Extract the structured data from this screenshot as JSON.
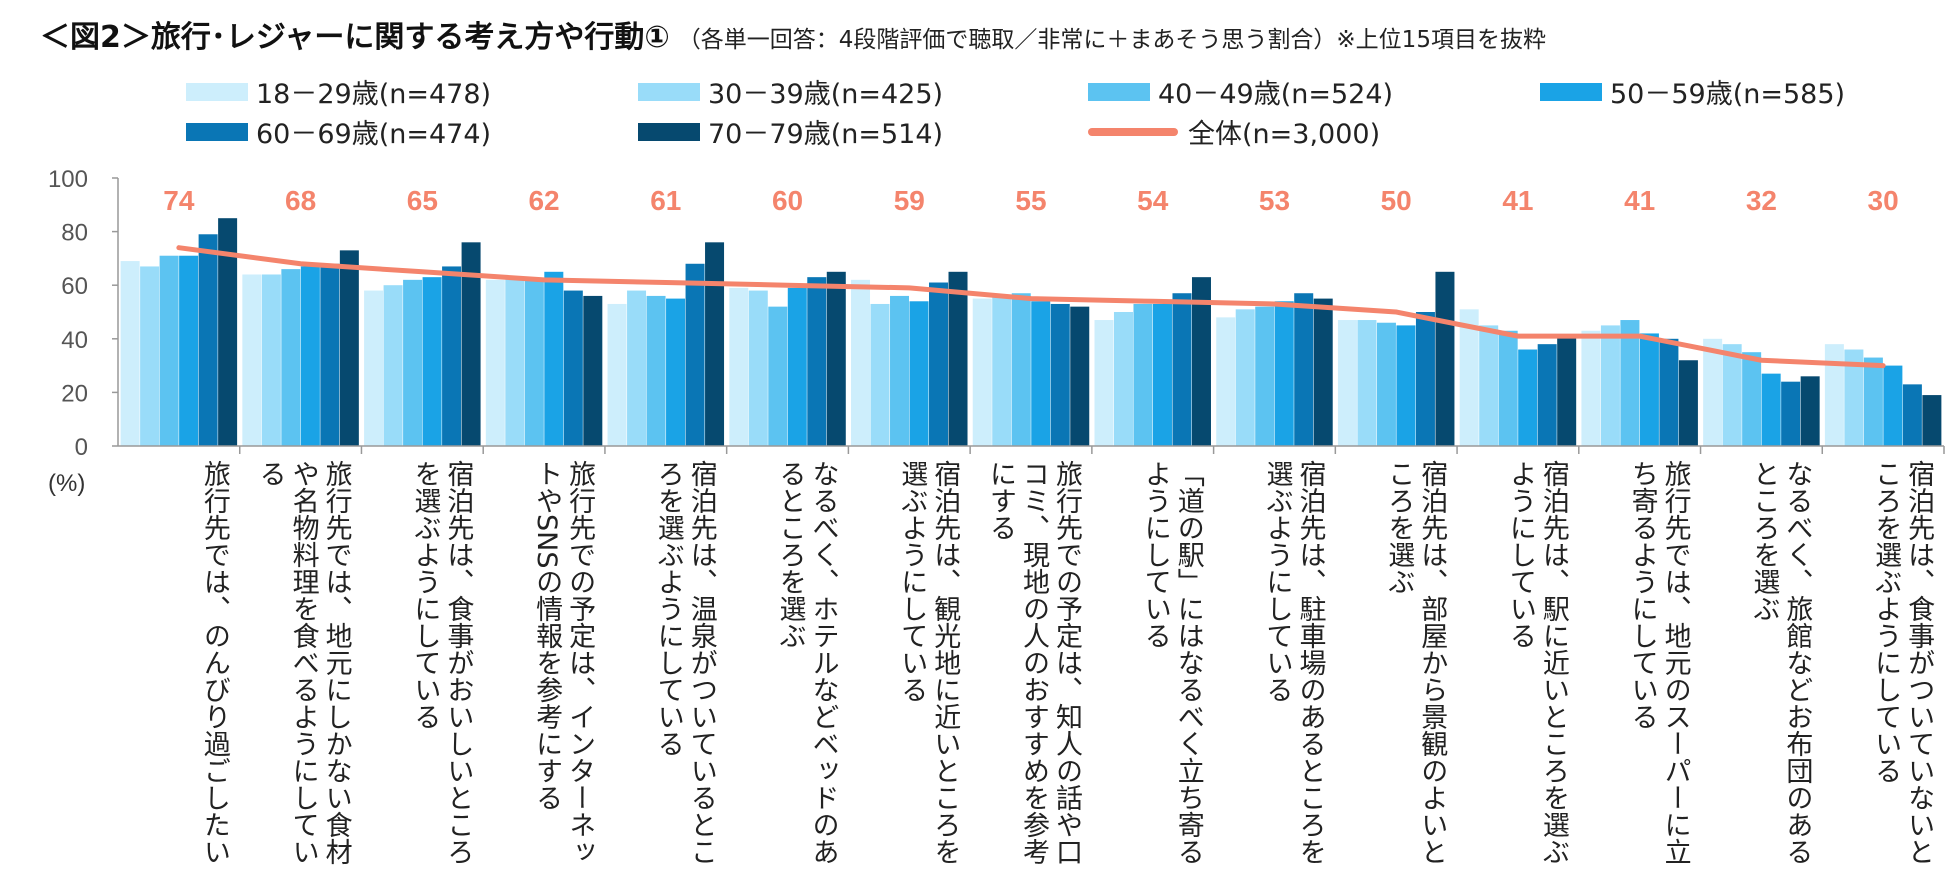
{
  "header": {
    "title": "＜図2＞旅行･レジャーに関する考え方や行動①",
    "subtitle": "（各単一回答：4段階評価で聴取／非常に＋まあそう思う割合）※上位15項目を抜粋"
  },
  "colors": {
    "s18_29": "#cdeefc",
    "s30_39": "#99dcf9",
    "s40_49": "#5cc3f1",
    "s50_59": "#1aa3e6",
    "s60_69": "#0a76b5",
    "s70_79": "#06496f",
    "total": "#f4846c",
    "axis": "#999999",
    "value_label": "#f4846c"
  },
  "chart_data": {
    "type": "bar",
    "title": "旅行･レジャーに関する考え方や行動①",
    "ylabel": "(%)",
    "ylim": [
      0,
      100
    ],
    "yticks": [
      "0",
      "20",
      "40",
      "60",
      "80",
      "100"
    ],
    "ytick_values": [
      0,
      20,
      40,
      60,
      80,
      100
    ],
    "categories": [
      "旅行先では、のんびり過ごしたい",
      "旅行先では、地元にしかない食材や名物料理を食べるようにしている",
      "宿泊先は、食事がおいしいところを選ぶようにしている",
      "旅行先での予定は、インターネットやSNSの情報を参考にする",
      "宿泊先は、温泉がついているところを選ぶようにしている",
      "なるべく、ホテルなどベッドのあるところを選ぶ",
      "宿泊先は、観光地に近いところを選ぶようにしている",
      "旅行先での予定は、知人の話や口コミ、現地の人のおすすめを参考にする",
      "「道の駅」にはなるべく立ち寄るようにしている",
      "宿泊先は、駐車場のあるところを選ぶようにしている",
      "宿泊先は、部屋から景観のよいところを選ぶ",
      "宿泊先は、駅に近いところを選ぶようにしている",
      "旅行先では、地元のスーパーに立ち寄るようにしている",
      "なるべく、旅館などお布団のあるところを選ぶ",
      "宿泊先は、食事がついていないところを選ぶようにしている"
    ],
    "series": [
      {
        "name": "18－29歳(n=478)",
        "values": [
          69,
          64,
          58,
          62,
          53,
          59,
          62,
          55,
          47,
          48,
          47,
          51,
          43,
          40,
          38
        ]
      },
      {
        "name": "30－39歳(n=425)",
        "values": [
          67,
          64,
          60,
          63,
          58,
          58,
          53,
          56,
          50,
          51,
          47,
          45,
          45,
          38,
          36
        ]
      },
      {
        "name": "40－49歳(n=524)",
        "values": [
          71,
          66,
          62,
          62,
          56,
          52,
          56,
          57,
          53,
          52,
          46,
          43,
          47,
          35,
          33
        ]
      },
      {
        "name": "50－59歳(n=585)",
        "values": [
          71,
          67,
          63,
          65,
          55,
          59,
          54,
          54,
          53,
          54,
          45,
          36,
          42,
          27,
          30
        ]
      },
      {
        "name": "60－69歳(n=474)",
        "values": [
          79,
          68,
          67,
          58,
          68,
          63,
          61,
          53,
          57,
          57,
          50,
          38,
          40,
          24,
          23
        ]
      },
      {
        "name": "70－79歳(n=514)",
        "values": [
          85,
          73,
          76,
          56,
          76,
          65,
          65,
          52,
          63,
          55,
          65,
          41,
          32,
          26,
          19
        ]
      }
    ],
    "total": {
      "name": "全体(n=3,000)",
      "type": "line",
      "values": [
        74,
        68,
        65,
        62,
        61,
        60,
        59,
        55,
        54,
        53,
        50,
        41,
        41,
        32,
        30
      ],
      "labels": [
        "74",
        "68",
        "65",
        "62",
        "61",
        "60",
        "59",
        "55",
        "54",
        "53",
        "50",
        "41",
        "41",
        "32",
        "30"
      ]
    }
  }
}
